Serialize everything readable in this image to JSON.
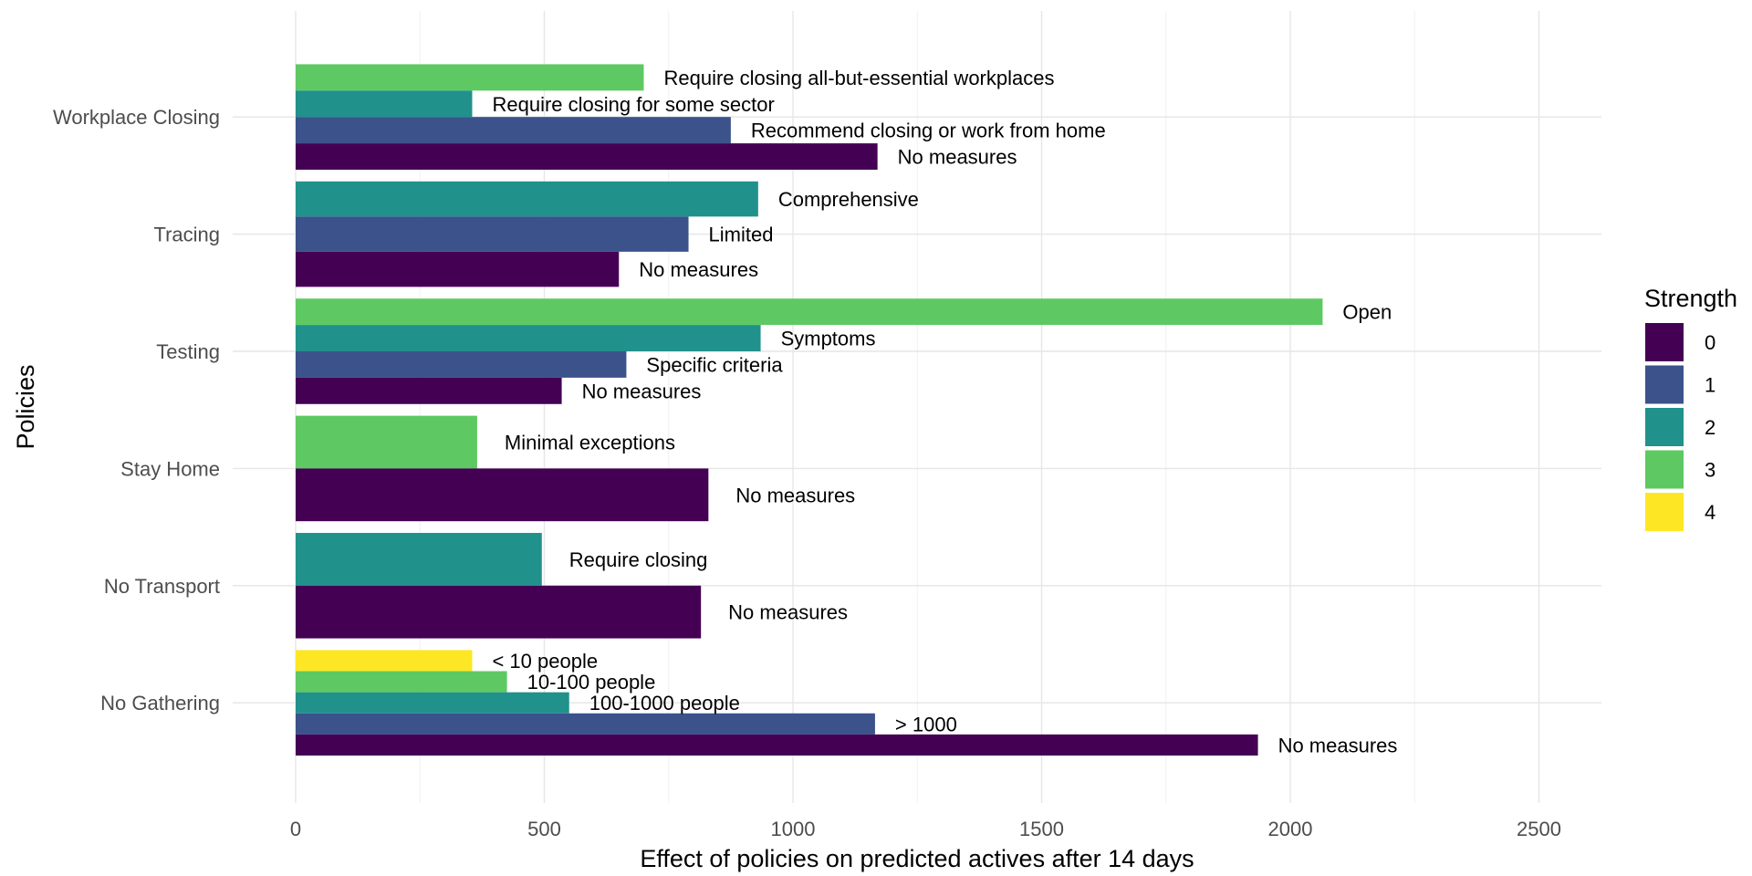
{
  "chart_data": {
    "type": "bar",
    "orientation": "horizontal",
    "xlabel": "Effect of policies on predicted actives after 14 days",
    "ylabel": "Policies",
    "xlim": [
      -120,
      2620
    ],
    "xticks": [
      0,
      500,
      1000,
      1500,
      2000,
      2500
    ],
    "grid": true,
    "legend": {
      "title": "Strength",
      "position": "right",
      "items": [
        {
          "label": "0",
          "color": "#440154"
        },
        {
          "label": "1",
          "color": "#3b528b"
        },
        {
          "label": "2",
          "color": "#21918c"
        },
        {
          "label": "3",
          "color": "#5ec962"
        },
        {
          "label": "4",
          "color": "#fde725"
        }
      ]
    },
    "categories": [
      "Workplace Closing",
      "Tracing",
      "Testing",
      "Stay Home",
      "No Transport",
      "No Gathering"
    ],
    "groups": [
      {
        "policy": "Workplace Closing",
        "bars": [
          {
            "strength": 3,
            "value": 700,
            "label": "Require closing all-but-essential workplaces"
          },
          {
            "strength": 2,
            "value": 355,
            "label": "Require closing for some sector"
          },
          {
            "strength": 1,
            "value": 875,
            "label": "Recommend closing or work from home"
          },
          {
            "strength": 0,
            "value": 1170,
            "label": "No measures"
          }
        ]
      },
      {
        "policy": "Tracing",
        "bars": [
          {
            "strength": 2,
            "value": 930,
            "label": "Comprehensive"
          },
          {
            "strength": 1,
            "value": 790,
            "label": "Limited"
          },
          {
            "strength": 0,
            "value": 650,
            "label": "No measures"
          }
        ]
      },
      {
        "policy": "Testing",
        "bars": [
          {
            "strength": 3,
            "value": 2065,
            "label": "Open"
          },
          {
            "strength": 2,
            "value": 935,
            "label": "Symptoms"
          },
          {
            "strength": 1,
            "value": 665,
            "label": "Specific criteria"
          },
          {
            "strength": 0,
            "value": 535,
            "label": "No measures"
          }
        ]
      },
      {
        "policy": "Stay Home",
        "bars": [
          {
            "strength": 3,
            "value": 365,
            "label": "Minimal exceptions"
          },
          {
            "strength": 0,
            "value": 830,
            "label": "No measures"
          }
        ]
      },
      {
        "policy": "No Transport",
        "bars": [
          {
            "strength": 2,
            "value": 495,
            "label": "Require closing"
          },
          {
            "strength": 0,
            "value": 815,
            "label": "No measures"
          }
        ]
      },
      {
        "policy": "No Gathering",
        "bars": [
          {
            "strength": 4,
            "value": 355,
            "label": "< 10 people"
          },
          {
            "strength": 3,
            "value": 425,
            "label": "10-100 people"
          },
          {
            "strength": 2,
            "value": 550,
            "label": "100-1000 people"
          },
          {
            "strength": 1,
            "value": 1165,
            "label": "> 1000"
          },
          {
            "strength": 0,
            "value": 1935,
            "label": "No measures"
          }
        ]
      }
    ]
  }
}
